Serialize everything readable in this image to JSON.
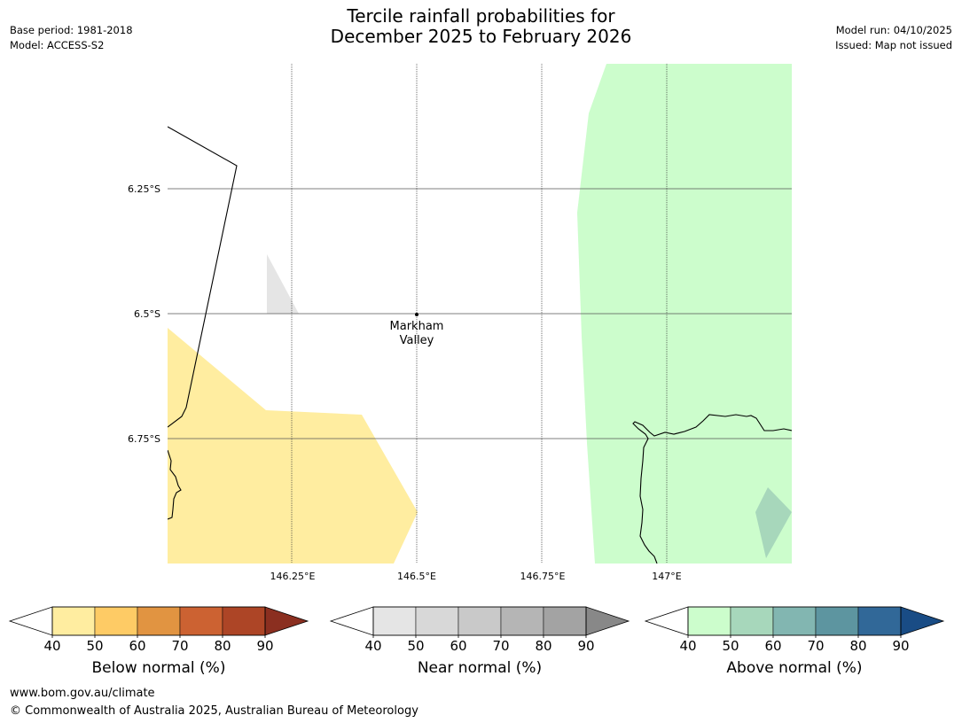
{
  "header": {
    "title_line1": "Tercile rainfall probabilities for",
    "title_line2": "December 2025 to February 2026",
    "base_period": "Base period: 1981-2018",
    "model": "Model: ACCESS-S2",
    "model_run": "Model run: 04/10/2025",
    "issued": "Issued: Map not issued"
  },
  "map": {
    "lat_labels": [
      "6.25°S",
      "6.5°S",
      "6.75°S"
    ],
    "lon_labels": [
      "146.25°E",
      "146.5°E",
      "146.75°E",
      "147°E"
    ],
    "place": {
      "line1": "Markham",
      "line2": "Valley"
    }
  },
  "colorbars": [
    {
      "title": "Below normal (%)",
      "ticks": [
        "40",
        "50",
        "60",
        "70",
        "80",
        "90"
      ],
      "colors": [
        "#ffffff",
        "#ffeda0",
        "#fecb65",
        "#e19441",
        "#cc6232",
        "#ad4526",
        "#8b2f20"
      ]
    },
    {
      "title": "Near normal (%)",
      "ticks": [
        "40",
        "50",
        "60",
        "70",
        "80",
        "90"
      ],
      "colors": [
        "#ffffff",
        "#e5e5e5",
        "#d8d8d8",
        "#c9c9c9",
        "#b5b5b5",
        "#a3a3a3",
        "#888888"
      ]
    },
    {
      "title": "Above normal (%)",
      "ticks": [
        "40",
        "50",
        "60",
        "70",
        "80",
        "90"
      ],
      "colors": [
        "#ffffff",
        "#ccfdcc",
        "#a7d7bb",
        "#82b6b1",
        "#5d95a0",
        "#316898",
        "#194c85"
      ]
    }
  ],
  "footer": {
    "website": "www.bom.gov.au/climate",
    "copyright": "© Commonwealth of Australia 2025, Australian Bureau of Meteorology"
  }
}
